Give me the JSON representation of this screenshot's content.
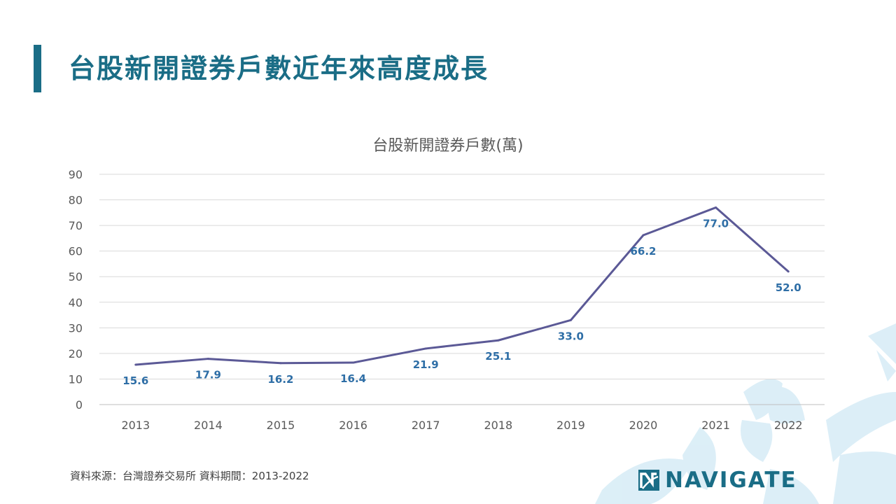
{
  "page": {
    "title": "台股新開證券戶數近年來高度成長",
    "source": "資料來源：台灣證券交易所  資料期間：2013-2022",
    "brand": "NAVIGATE",
    "accent_color": "#1a6d86",
    "brand_icon": "navigate-logo-icon"
  },
  "chart_data": {
    "type": "line",
    "title": "台股新開證券戶數(萬)",
    "xlabel": "",
    "ylabel": "",
    "categories": [
      "2013",
      "2014",
      "2015",
      "2016",
      "2017",
      "2018",
      "2019",
      "2020",
      "2021",
      "2022"
    ],
    "series": [
      {
        "values": [
          15.6,
          17.9,
          16.2,
          16.4,
          21.9,
          25.1,
          33.0,
          66.2,
          77.0,
          52.0
        ],
        "color": "#5b5996"
      }
    ],
    "data_labels": [
      "15.6",
      "17.9",
      "16.2",
      "16.4",
      "21.9",
      "25.1",
      "33.0",
      "66.2",
      "77.0",
      "52.0"
    ],
    "label_color": "#2e6ea6",
    "ylim": [
      0,
      90
    ],
    "yticks": [
      "0",
      "10",
      "20",
      "30",
      "40",
      "50",
      "60",
      "70",
      "80",
      "90"
    ],
    "grid": true,
    "legend": "none"
  }
}
